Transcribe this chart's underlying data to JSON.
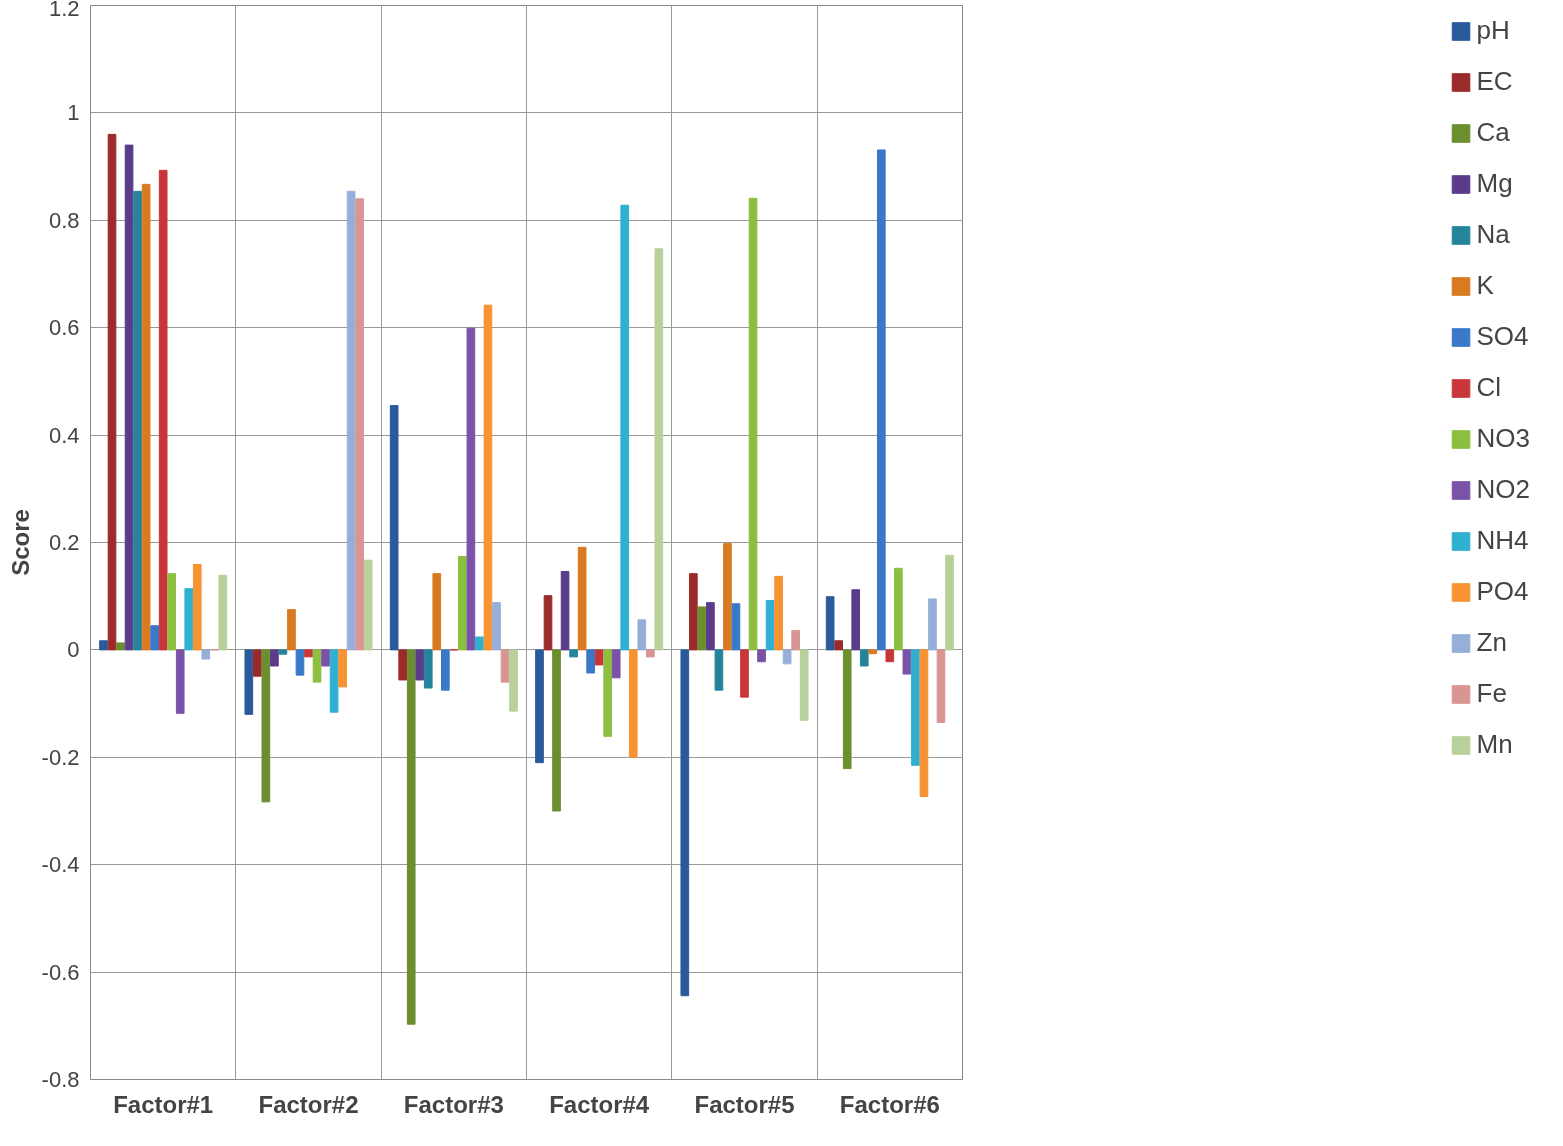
{
  "chart_data": {
    "type": "bar",
    "ylabel": "Score",
    "categories": [
      "Factor#1",
      "Factor#2",
      "Factor#3",
      "Factor#4",
      "Factor#5",
      "Factor#6"
    ],
    "ylim": [
      -0.8,
      1.2
    ],
    "yticks": [
      {
        "value": -0.8,
        "label": "-0.8"
      },
      {
        "value": -0.6,
        "label": "-0.6"
      },
      {
        "value": -0.4,
        "label": "-0.4"
      },
      {
        "value": -0.2,
        "label": "-0.2"
      },
      0,
      {
        "value": 0.2,
        "label": "0.2"
      },
      {
        "value": 0.4,
        "label": "0.4"
      },
      {
        "value": 0.6,
        "label": "0.6"
      },
      {
        "value": 0.8,
        "label": "0.8"
      },
      1,
      {
        "value": 1.2,
        "label": "1.2"
      }
    ],
    "grid": true,
    "legend": "right",
    "series": [
      {
        "name": "pH",
        "color": "#2a5a9a",
        "values": [
          0.017,
          -0.12,
          0.455,
          -0.21,
          -0.644,
          0.099
        ]
      },
      {
        "name": "EC",
        "color": "#9b2a2a",
        "values": [
          0.96,
          -0.049,
          -0.056,
          0.101,
          0.142,
          0.017
        ]
      },
      {
        "name": "Ca",
        "color": "#6b8e2e",
        "values": [
          0.013,
          -0.283,
          -0.697,
          -0.3,
          0.08,
          -0.221
        ]
      },
      {
        "name": "Mg",
        "color": "#5a3c8a",
        "values": [
          0.94,
          -0.03,
          -0.056,
          0.146,
          0.088,
          0.112
        ]
      },
      {
        "name": "Na",
        "color": "#23849a",
        "values": [
          0.854,
          -0.008,
          -0.071,
          -0.013,
          -0.075,
          -0.03
        ]
      },
      {
        "name": "K",
        "color": "#d97a20",
        "values": [
          0.867,
          0.075,
          0.142,
          0.191,
          0.198,
          -0.007
        ]
      },
      {
        "name": "SO4",
        "color": "#3a78c8",
        "values": [
          0.045,
          -0.047,
          -0.075,
          -0.043,
          0.086,
          0.931
        ]
      },
      {
        "name": "Cl",
        "color": "#c8363a",
        "values": [
          0.893,
          -0.013,
          0,
          -0.028,
          -0.088,
          -0.022
        ]
      },
      {
        "name": "NO3",
        "color": "#8cbf3f",
        "values": [
          0.142,
          -0.06,
          0.174,
          -0.161,
          0.841,
          0.152
        ]
      },
      {
        "name": "NO2",
        "color": "#7a52a8",
        "values": [
          -0.118,
          -0.03,
          0.599,
          -0.052,
          -0.022,
          -0.045
        ]
      },
      {
        "name": "NH4",
        "color": "#30b0d0",
        "values": [
          0.114,
          -0.116,
          0.024,
          0.828,
          0.092,
          -0.215
        ]
      },
      {
        "name": "PO4",
        "color": "#f79332",
        "values": [
          0.159,
          -0.069,
          0.642,
          -0.2,
          0.137,
          -0.273
        ]
      },
      {
        "name": "Zn",
        "color": "#95afd8",
        "values": [
          -0.017,
          0.854,
          0.088,
          0.056,
          -0.026,
          0.095
        ]
      },
      {
        "name": "Fe",
        "color": "#d99594",
        "values": [
          0,
          0.84,
          -0.06,
          -0.013,
          0.036,
          -0.135
        ]
      },
      {
        "name": "Mn",
        "color": "#b8d09a",
        "values": [
          0.139,
          0.167,
          -0.114,
          0.747,
          -0.131,
          0.176
        ]
      }
    ]
  }
}
